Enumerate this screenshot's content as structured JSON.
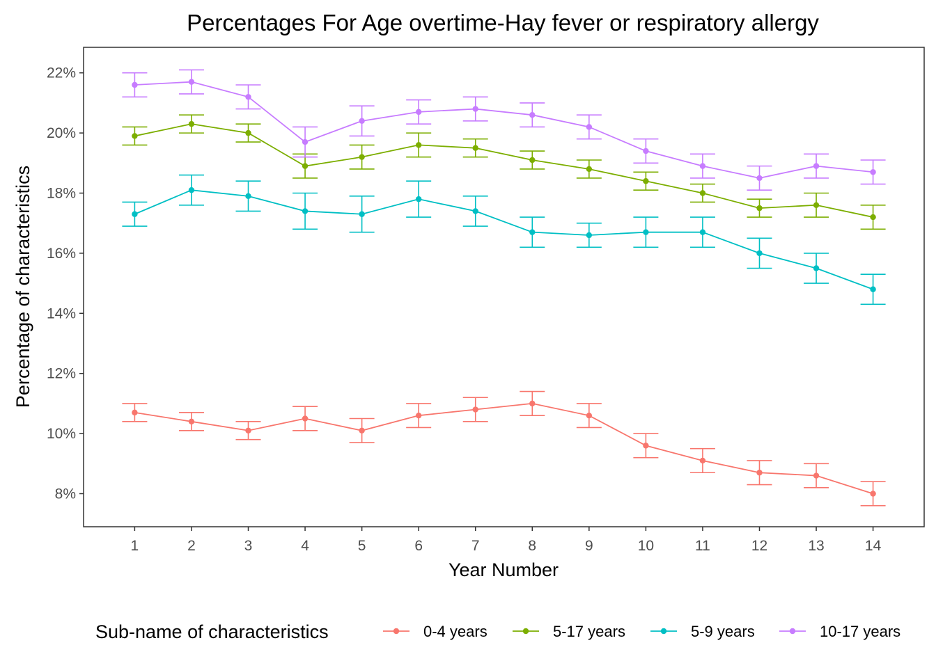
{
  "chart_data": {
    "type": "line",
    "title": "Percentages For Age overtime-Hay fever or respiratory allergy",
    "xlabel": "Year Number",
    "ylabel": "Percentage of characteristics",
    "x": [
      1,
      2,
      3,
      4,
      5,
      6,
      7,
      8,
      9,
      10,
      11,
      12,
      13,
      14
    ],
    "xlim": [
      0.1,
      14.9
    ],
    "ylim": [
      6.9,
      22.85
    ],
    "yticks": [
      8,
      10,
      12,
      14,
      16,
      18,
      20,
      22
    ],
    "ytick_labels": [
      "8%",
      "10%",
      "12%",
      "14%",
      "16%",
      "18%",
      "20%",
      "22%"
    ],
    "grid": false,
    "legend": {
      "title": "Sub-name of characteristics",
      "position": "bottom"
    },
    "series": [
      {
        "name": "0-4 years",
        "color": "#F8766D",
        "values": [
          10.7,
          10.4,
          10.1,
          10.5,
          10.1,
          10.6,
          10.8,
          11.0,
          10.6,
          9.6,
          9.1,
          8.7,
          8.6,
          8.0
        ],
        "lower": [
          10.4,
          10.1,
          9.8,
          10.1,
          9.7,
          10.2,
          10.4,
          10.6,
          10.2,
          9.2,
          8.7,
          8.3,
          8.2,
          7.6
        ],
        "upper": [
          11.0,
          10.7,
          10.4,
          10.9,
          10.5,
          11.0,
          11.2,
          11.4,
          11.0,
          10.0,
          9.5,
          9.1,
          9.0,
          8.4
        ]
      },
      {
        "name": "5-17 years",
        "color": "#7CAE00",
        "values": [
          19.9,
          20.3,
          20.0,
          18.9,
          19.2,
          19.6,
          19.5,
          19.1,
          18.8,
          18.4,
          18.0,
          17.5,
          17.6,
          17.2
        ],
        "lower": [
          19.6,
          20.0,
          19.7,
          18.5,
          18.8,
          19.2,
          19.2,
          18.8,
          18.5,
          18.1,
          17.7,
          17.2,
          17.2,
          16.8
        ],
        "upper": [
          20.2,
          20.6,
          20.3,
          19.3,
          19.6,
          20.0,
          19.8,
          19.4,
          19.1,
          18.7,
          18.3,
          17.8,
          18.0,
          17.6
        ]
      },
      {
        "name": "5-9 years",
        "color": "#00BFC4",
        "values": [
          17.3,
          18.1,
          17.9,
          17.4,
          17.3,
          17.8,
          17.4,
          16.7,
          16.6,
          16.7,
          16.7,
          16.0,
          15.5,
          14.8
        ],
        "lower": [
          16.9,
          17.6,
          17.4,
          16.8,
          16.7,
          17.2,
          16.9,
          16.2,
          16.2,
          16.2,
          16.2,
          15.5,
          15.0,
          14.3
        ],
        "upper": [
          17.7,
          18.6,
          18.4,
          18.0,
          17.9,
          18.4,
          17.9,
          17.2,
          17.0,
          17.2,
          17.2,
          16.5,
          16.0,
          15.3
        ]
      },
      {
        "name": "10-17 years",
        "color": "#C77CFF",
        "values": [
          21.6,
          21.7,
          21.2,
          19.7,
          20.4,
          20.7,
          20.8,
          20.6,
          20.2,
          19.4,
          18.9,
          18.5,
          18.9,
          18.7
        ],
        "lower": [
          21.2,
          21.3,
          20.8,
          19.2,
          19.9,
          20.3,
          20.4,
          20.2,
          19.8,
          19.0,
          18.5,
          18.1,
          18.5,
          18.3
        ],
        "upper": [
          22.0,
          22.1,
          21.6,
          20.2,
          20.9,
          21.1,
          21.2,
          21.0,
          20.6,
          19.8,
          19.3,
          18.9,
          19.3,
          19.1
        ]
      }
    ]
  }
}
